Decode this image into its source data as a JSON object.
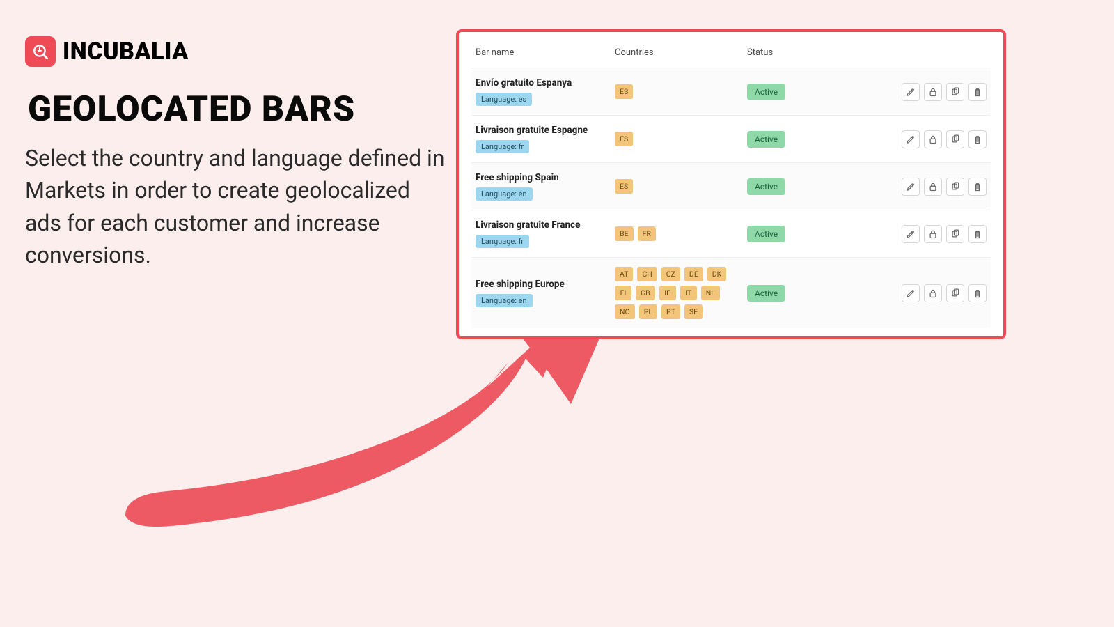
{
  "brand": {
    "name": "INCUBALIA",
    "mark_bg": "#ef4b56"
  },
  "headline": "GEOLOCATED BARS",
  "body": "Select the country and language defined in Markets in order to create geolocalized ads for each customer and increase conversions.",
  "card": {
    "border_color": "#ef4b56",
    "columns": {
      "name": "Bar name",
      "countries": "Countries",
      "status": "Status"
    },
    "language_prefix": "Language: ",
    "chip_colors": {
      "language_bg": "#9cd7ef",
      "country_bg": "#f3c57a",
      "status_bg": "#8fd9a8"
    },
    "rows": [
      {
        "name": "Envío gratuito Espanya",
        "language": "es",
        "countries": [
          "ES"
        ],
        "status": "Active"
      },
      {
        "name": "Livraison gratuite Espagne",
        "language": "fr",
        "countries": [
          "ES"
        ],
        "status": "Active"
      },
      {
        "name": "Free shipping Spain",
        "language": "en",
        "countries": [
          "ES"
        ],
        "status": "Active"
      },
      {
        "name": "Livraison gratuite France",
        "language": "fr",
        "countries": [
          "BE",
          "FR"
        ],
        "status": "Active"
      },
      {
        "name": "Free shipping Europe",
        "language": "en",
        "countries": [
          "AT",
          "CH",
          "CZ",
          "DE",
          "DK",
          "FI",
          "GB",
          "IE",
          "IT",
          "NL",
          "NO",
          "PL",
          "PT",
          "SE"
        ],
        "status": "Active"
      }
    ],
    "actions": [
      "edit",
      "lock",
      "copy",
      "delete"
    ]
  },
  "arrow_color": "#ee5a64",
  "page_bg": "#fdeeee"
}
